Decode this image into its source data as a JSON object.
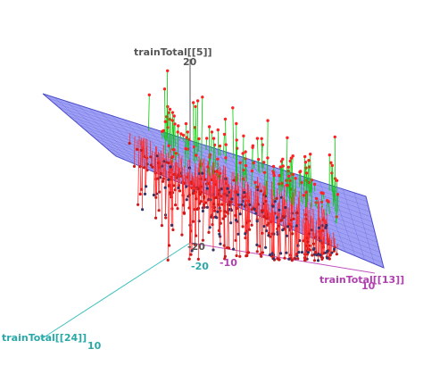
{
  "chart_data": {
    "type": "scatter",
    "subtype": "3d-scatter-with-regression-plane",
    "axes": {
      "z": {
        "label": "trainTotal[[5]]",
        "ticks": [
          "20",
          "-20"
        ],
        "range": [
          -20,
          20
        ]
      },
      "x": {
        "label": "trainTotal[[13]]",
        "ticks": [
          "-10",
          "10"
        ],
        "range": [
          -15,
          15
        ]
      },
      "y": {
        "label": "trainTotal[[24]]",
        "ticks": [
          "-20",
          "10"
        ],
        "range": [
          -25,
          15
        ]
      }
    },
    "colors": {
      "plane_fill": "#7a7cf0",
      "plane_grid": "#5b5ed8",
      "plane_edge": "#4a4cc8",
      "residual_above": "#00cc00",
      "residual_below": "#ff2a2a",
      "point_above": "#ff2222",
      "point_below": "#cc1a1a",
      "point_dark": "#333366",
      "axis_z": "#555555",
      "axis_x": "#c050c0",
      "axis_y": "#40c0c0",
      "z_label": "#555555",
      "x_label": "#b040b0",
      "y_label": "#2aa8a8"
    },
    "grid": false,
    "point_count_above": 140,
    "point_count_below": 420
  }
}
